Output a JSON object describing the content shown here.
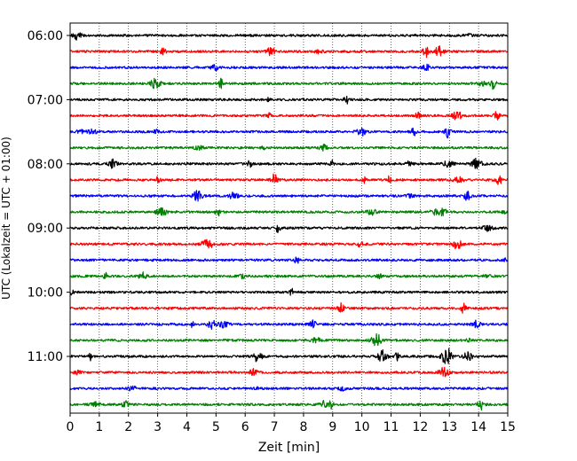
{
  "chart_data": {
    "type": "line",
    "title": "",
    "xlabel": "Zeit  [min]",
    "ylabel": "UTC (Lokalzeit = UTC + 01:00)",
    "xlim": [
      0,
      15
    ],
    "x_ticks": [
      "0",
      "1",
      "2",
      "3",
      "4",
      "5",
      "6",
      "7",
      "8",
      "9",
      "10",
      "11",
      "12",
      "13",
      "14",
      "15"
    ],
    "y_ticks": [
      "06:00",
      "07:00",
      "08:00",
      "09:00",
      "10:00",
      "11:00"
    ],
    "grid": "vertical dotted",
    "trace_colors": [
      "#000000",
      "#ff0000",
      "#0000ff",
      "#008000"
    ],
    "traces": [
      {
        "start": "06:00",
        "color": "#000000"
      },
      {
        "start": "06:15",
        "color": "#ff0000"
      },
      {
        "start": "06:30",
        "color": "#0000ff"
      },
      {
        "start": "06:45",
        "color": "#008000"
      },
      {
        "start": "07:00",
        "color": "#000000"
      },
      {
        "start": "07:15",
        "color": "#ff0000"
      },
      {
        "start": "07:30",
        "color": "#0000ff"
      },
      {
        "start": "07:45",
        "color": "#008000"
      },
      {
        "start": "08:00",
        "color": "#000000"
      },
      {
        "start": "08:15",
        "color": "#ff0000"
      },
      {
        "start": "08:30",
        "color": "#0000ff"
      },
      {
        "start": "08:45",
        "color": "#008000"
      },
      {
        "start": "09:00",
        "color": "#000000"
      },
      {
        "start": "09:15",
        "color": "#ff0000"
      },
      {
        "start": "09:30",
        "color": "#0000ff"
      },
      {
        "start": "09:45",
        "color": "#008000"
      },
      {
        "start": "10:00",
        "color": "#000000"
      },
      {
        "start": "10:15",
        "color": "#ff0000"
      },
      {
        "start": "10:30",
        "color": "#0000ff"
      },
      {
        "start": "10:45",
        "color": "#008000"
      },
      {
        "start": "11:00",
        "color": "#000000"
      },
      {
        "start": "11:15",
        "color": "#ff0000"
      },
      {
        "start": "11:30",
        "color": "#0000ff"
      },
      {
        "start": "11:45",
        "color": "#008000"
      }
    ]
  }
}
